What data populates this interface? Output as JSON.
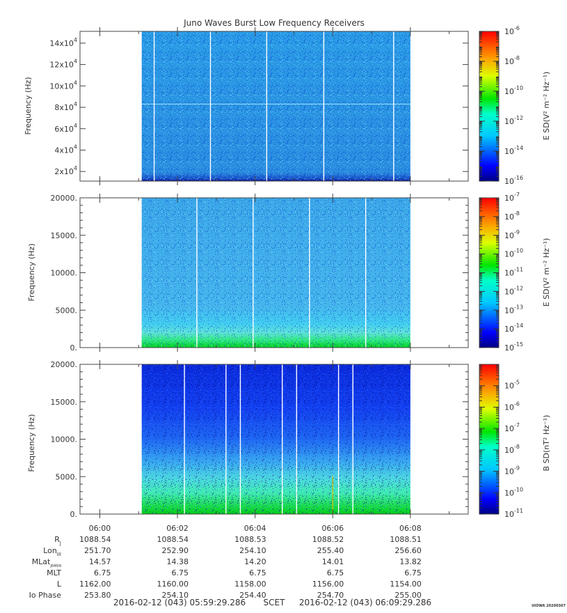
{
  "title": "Juno Waves Burst Low Frequency Receivers",
  "credit": "UIOWA 20200307",
  "chart_data": [
    {
      "type": "heatmap",
      "ylabel": "Frequency (Hz)",
      "ylim": [
        11000,
        151000
      ],
      "yticks": [
        {
          "value": 20000,
          "mant": "2x10",
          "exp": "4"
        },
        {
          "value": 40000,
          "mant": "4x10",
          "exp": "4"
        },
        {
          "value": 60000,
          "mant": "6x10",
          "exp": "4"
        },
        {
          "value": 80000,
          "mant": "8x10",
          "exp": "4"
        },
        {
          "value": 100000,
          "mant": "10x10",
          "exp": "4"
        },
        {
          "value": 120000,
          "mant": "12x10",
          "exp": "4"
        },
        {
          "value": 140000,
          "mant": "14x10",
          "exp": "4"
        }
      ],
      "colorbar": {
        "label": "E SD(V² m⁻² Hz⁻¹)",
        "log_min": -16,
        "log_max": -6,
        "ticks": [
          {
            "value": -6,
            "mant": "10",
            "exp": "-6"
          },
          {
            "value": -8,
            "mant": "10",
            "exp": "-8"
          },
          {
            "value": -10,
            "mant": "10",
            "exp": "-10"
          },
          {
            "value": -12,
            "mant": "10",
            "exp": "-12"
          },
          {
            "value": -14,
            "mant": "10",
            "exp": "-14"
          },
          {
            "value": -16,
            "mant": "10",
            "exp": "-16"
          }
        ]
      },
      "data_start_min": 1.08,
      "data_end_min": 8.0,
      "gaps_min": [
        1.4,
        2.85,
        4.3,
        5.77,
        7.57
      ]
    },
    {
      "type": "heatmap",
      "ylabel": "Frequency (Hz)",
      "ylim": [
        0,
        20000
      ],
      "yticks": [
        {
          "value": 0,
          "label": "0."
        },
        {
          "value": 5000,
          "label": "5000."
        },
        {
          "value": 10000,
          "label": "10000."
        },
        {
          "value": 15000,
          "label": "15000."
        },
        {
          "value": 20000,
          "label": "20000."
        }
      ],
      "colorbar": {
        "label": "E SD(V² m⁻² Hz⁻¹)",
        "log_min": -15,
        "log_max": -7,
        "ticks": [
          {
            "value": -7,
            "mant": "10",
            "exp": "-7"
          },
          {
            "value": -8,
            "mant": "10",
            "exp": "-8"
          },
          {
            "value": -9,
            "mant": "10",
            "exp": "-9"
          },
          {
            "value": -10,
            "mant": "10",
            "exp": "-10"
          },
          {
            "value": -11,
            "mant": "10",
            "exp": "-11"
          },
          {
            "value": -12,
            "mant": "10",
            "exp": "-12"
          },
          {
            "value": -13,
            "mant": "10",
            "exp": "-13"
          },
          {
            "value": -14,
            "mant": "10",
            "exp": "-14"
          },
          {
            "value": -15,
            "mant": "10",
            "exp": "-15"
          }
        ]
      },
      "data_start_min": 1.08,
      "data_end_min": 8.0,
      "gaps_min": [
        2.5,
        3.95,
        5.4,
        6.85
      ]
    },
    {
      "type": "heatmap",
      "ylabel": "Frequency (Hz)",
      "ylim": [
        0,
        20000
      ],
      "yticks": [
        {
          "value": 0,
          "label": "0."
        },
        {
          "value": 5000,
          "label": "5000."
        },
        {
          "value": 10000,
          "label": "10000."
        },
        {
          "value": 15000,
          "label": "15000."
        },
        {
          "value": 20000,
          "label": "20000."
        }
      ],
      "colorbar": {
        "label": "B SD(nT² Hz⁻¹)",
        "log_min": -11,
        "log_max": -4,
        "ticks": [
          {
            "value": -5,
            "mant": "10",
            "exp": "-5"
          },
          {
            "value": -6,
            "mant": "10",
            "exp": "-6"
          },
          {
            "value": -7,
            "mant": "10",
            "exp": "-7"
          },
          {
            "value": -8,
            "mant": "10",
            "exp": "-8"
          },
          {
            "value": -9,
            "mant": "10",
            "exp": "-9"
          },
          {
            "value": -10,
            "mant": "10",
            "exp": "-10"
          },
          {
            "value": -11,
            "mant": "10",
            "exp": "-11"
          }
        ]
      },
      "data_start_min": 1.08,
      "data_end_min": 8.0,
      "gaps_min": [
        2.18,
        3.25,
        3.62,
        4.7,
        5.07,
        6.15,
        6.52
      ],
      "spike_min": 6.0
    }
  ],
  "time_axis": {
    "range_min": [
      -0.51,
      9.49
    ],
    "ticks": [
      {
        "value": 0,
        "label": "06:00"
      },
      {
        "value": 2,
        "label": "06:02"
      },
      {
        "value": 4,
        "label": "06:04"
      },
      {
        "value": 6,
        "label": "06:06"
      },
      {
        "value": 8,
        "label": "06:08"
      }
    ]
  },
  "ephemeris": {
    "rows": [
      {
        "label": "R",
        "sub": "J",
        "values": [
          "1088.54",
          "1088.54",
          "1088.53",
          "1088.52",
          "1088.51"
        ]
      },
      {
        "label": "Lon",
        "sub": "III",
        "values": [
          "251.70",
          "252.90",
          "254.10",
          "255.40",
          "256.60"
        ]
      },
      {
        "label": "MLat",
        "sub": "JRM09",
        "values": [
          "14.57",
          "14.38",
          "14.20",
          "14.01",
          "13.82"
        ]
      },
      {
        "label": "MLT",
        "sub": "",
        "values": [
          "6.75",
          "6.75",
          "6.75",
          "6.75",
          "6.75"
        ]
      },
      {
        "label": "L",
        "sub": "",
        "values": [
          "1162.00",
          "1160.00",
          "1158.00",
          "1156.00",
          "1154.00"
        ]
      },
      {
        "label": "Io Phase",
        "sub": "",
        "values": [
          "253.80",
          "254.10",
          "254.40",
          "254.70",
          "255.00"
        ]
      }
    ]
  },
  "footer": {
    "start": "2016-02-12 (043) 05:59:29.286",
    "scet": "SCET",
    "end": "2016-02-12 (043) 06:09:29.286"
  }
}
